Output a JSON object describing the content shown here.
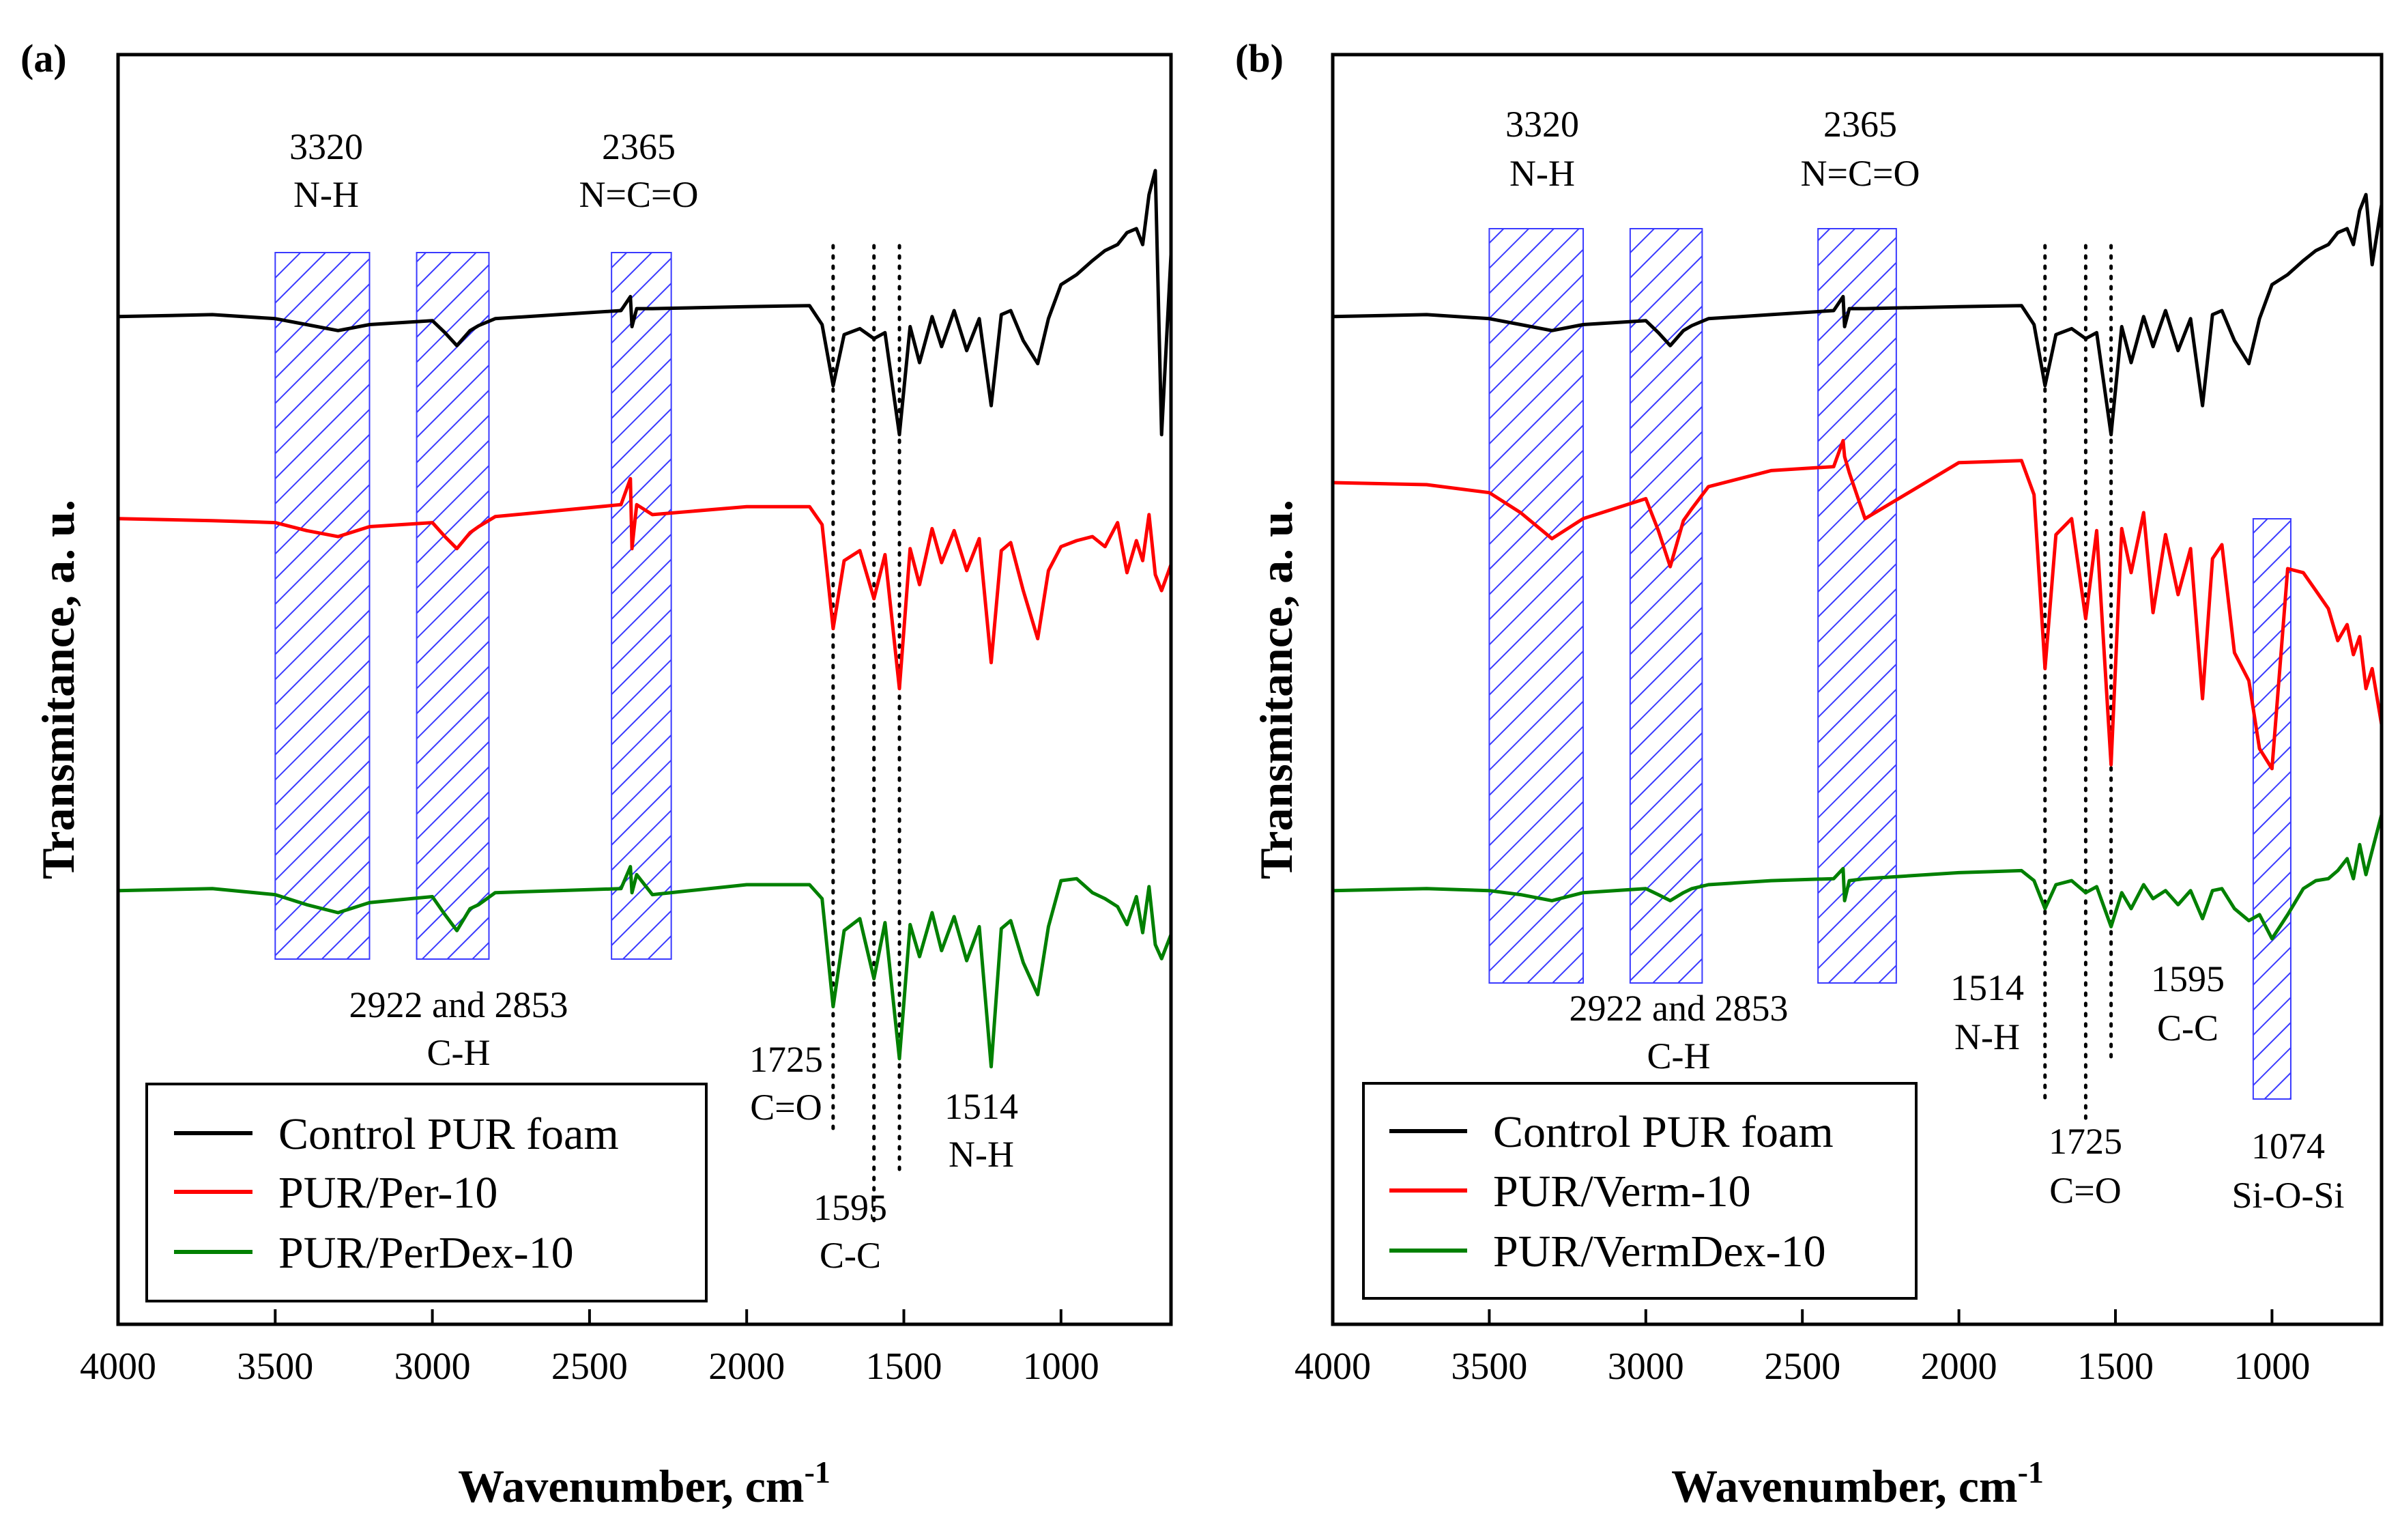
{
  "figure": {
    "ylabel": "Transmitance, a. u.",
    "xlabel": "Wavenumber, cm",
    "xlabel_sup": "-1",
    "colors": {
      "control": "#000000",
      "filled": "#ff0000",
      "treated": "#008000",
      "hatch": "#3a3aff"
    }
  },
  "chart_data": [
    {
      "type": "line",
      "panel": "(a)",
      "title": "",
      "xlabel": "Wavenumber, cm-1",
      "ylabel": "Transmitance, a. u.",
      "xlim": [
        4000,
        650
      ],
      "x_ticks": [
        4000,
        3500,
        3000,
        2500,
        2000,
        1500,
        1000
      ],
      "y_ticks": [],
      "legend_position": "bottom-left",
      "series": [
        {
          "name": "Control PUR foam",
          "color": "#000000",
          "x": [
            4000,
            3700,
            3500,
            3400,
            3300,
            3200,
            3000,
            2960,
            2922,
            2880,
            2853,
            2800,
            2600,
            2400,
            2370,
            2365,
            2350,
            2300,
            2000,
            1800,
            1760,
            1725,
            1690,
            1640,
            1595,
            1560,
            1514,
            1480,
            1450,
            1410,
            1380,
            1340,
            1300,
            1260,
            1222,
            1190,
            1160,
            1120,
            1074,
            1040,
            1000,
            950,
            900,
            860,
            820,
            790,
            760,
            740,
            720,
            700,
            680,
            650
          ],
          "y": [
            73.8,
            74.0,
            73.6,
            73.0,
            72.4,
            73.0,
            73.4,
            72.2,
            70.9,
            72.4,
            72.9,
            73.6,
            74.0,
            74.4,
            75.8,
            72.8,
            74.6,
            74.6,
            74.8,
            74.9,
            73.0,
            66.9,
            72.0,
            72.6,
            71.6,
            72.2,
            62.0,
            72.8,
            69.2,
            73.8,
            70.8,
            74.4,
            70.4,
            73.6,
            64.9,
            74.0,
            74.4,
            71.4,
            69.1,
            73.6,
            77.0,
            78.0,
            79.4,
            80.4,
            81.0,
            82.2,
            82.6,
            81.0,
            86.0,
            88.4,
            62.0,
            80.0
          ]
        },
        {
          "name": "PUR/Per-10",
          "color": "#ff0000",
          "x": [
            4000,
            3700,
            3500,
            3400,
            3300,
            3200,
            3000,
            2960,
            2922,
            2880,
            2853,
            2800,
            2600,
            2400,
            2370,
            2365,
            2350,
            2300,
            2000,
            1800,
            1760,
            1725,
            1690,
            1640,
            1595,
            1560,
            1514,
            1480,
            1450,
            1410,
            1380,
            1340,
            1300,
            1260,
            1222,
            1190,
            1160,
            1120,
            1074,
            1040,
            1000,
            950,
            900,
            860,
            820,
            790,
            760,
            740,
            720,
            700,
            680,
            650
          ],
          "y": [
            53.6,
            53.4,
            53.2,
            52.4,
            51.8,
            52.8,
            53.2,
            51.8,
            50.6,
            52.2,
            52.8,
            53.8,
            54.4,
            55.0,
            57.6,
            50.6,
            55.0,
            54.0,
            54.8,
            54.8,
            53.0,
            42.6,
            49.4,
            50.4,
            45.6,
            50.0,
            36.6,
            50.6,
            47.0,
            52.6,
            49.2,
            52.4,
            48.4,
            51.6,
            39.2,
            50.4,
            51.2,
            46.4,
            41.6,
            48.4,
            50.8,
            51.4,
            51.8,
            50.8,
            53.2,
            48.2,
            51.4,
            49.4,
            54.0,
            48.0,
            46.4,
            49.0
          ]
        },
        {
          "name": "PUR/PerDex-10",
          "color": "#008000",
          "x": [
            4000,
            3700,
            3500,
            3400,
            3300,
            3200,
            3000,
            2960,
            2922,
            2880,
            2853,
            2800,
            2600,
            2400,
            2370,
            2365,
            2350,
            2300,
            2000,
            1800,
            1760,
            1725,
            1690,
            1640,
            1595,
            1560,
            1514,
            1480,
            1450,
            1410,
            1380,
            1340,
            1300,
            1260,
            1222,
            1190,
            1160,
            1120,
            1074,
            1040,
            1000,
            950,
            900,
            860,
            820,
            790,
            760,
            740,
            720,
            700,
            680,
            650
          ],
          "y": [
            16.4,
            16.6,
            16.0,
            15.0,
            14.2,
            15.2,
            15.8,
            14.0,
            12.4,
            14.6,
            15.0,
            16.2,
            16.4,
            16.6,
            18.8,
            16.2,
            18.0,
            16.0,
            17.0,
            17.0,
            15.6,
            4.8,
            12.4,
            13.6,
            7.6,
            13.2,
            -0.4,
            13.0,
            9.8,
            14.2,
            10.4,
            13.8,
            9.4,
            12.8,
            -1.2,
            12.6,
            13.4,
            9.2,
            6.0,
            12.8,
            17.4,
            17.6,
            16.2,
            15.6,
            14.8,
            13.0,
            15.8,
            12.2,
            16.8,
            11.0,
            9.6,
            12.0
          ]
        }
      ],
      "highlight_bands": [
        [
          3500,
          3200
        ],
        [
          3050,
          2820
        ],
        [
          2430,
          2240
        ]
      ],
      "dotted_markers": [
        1725,
        1595,
        1514
      ],
      "annotations": [
        {
          "lines": [
            "3320",
            "N-H"
          ],
          "x": 3320
        },
        {
          "lines": [
            "2365",
            "N=C=O"
          ],
          "x": 2365
        },
        {
          "lines": [
            "2922 and 2853",
            "C-H"
          ],
          "x": 2922
        },
        {
          "lines": [
            "1725",
            "C=O"
          ],
          "x": 1725
        },
        {
          "lines": [
            "1595",
            "C-C"
          ],
          "x": 1595
        },
        {
          "lines": [
            "1514",
            "N-H"
          ],
          "x": 1514
        }
      ]
    },
    {
      "type": "line",
      "panel": "(b)",
      "title": "",
      "xlabel": "Wavenumber, cm-1",
      "ylabel": "Transmitance, a. u.",
      "xlim": [
        4000,
        650
      ],
      "x_ticks": [
        4000,
        3500,
        3000,
        2500,
        2000,
        1500,
        1000
      ],
      "y_ticks": [],
      "legend_position": "bottom-left",
      "series": [
        {
          "name": "Control PUR foam",
          "color": "#000000",
          "x": [
            4000,
            3700,
            3500,
            3400,
            3300,
            3200,
            3000,
            2960,
            2922,
            2880,
            2853,
            2800,
            2600,
            2400,
            2370,
            2365,
            2350,
            2300,
            2000,
            1800,
            1760,
            1725,
            1690,
            1640,
            1595,
            1560,
            1514,
            1480,
            1450,
            1410,
            1380,
            1340,
            1300,
            1260,
            1222,
            1190,
            1160,
            1120,
            1074,
            1040,
            1000,
            950,
            900,
            860,
            820,
            790,
            760,
            740,
            720,
            700,
            680,
            650
          ],
          "y": [
            73.8,
            74.0,
            73.6,
            73.0,
            72.4,
            73.0,
            73.4,
            72.2,
            70.9,
            72.4,
            72.9,
            73.6,
            74.0,
            74.4,
            75.8,
            72.8,
            74.6,
            74.6,
            74.8,
            74.9,
            73.0,
            66.9,
            72.0,
            72.6,
            71.6,
            72.2,
            62.0,
            72.8,
            69.2,
            73.8,
            70.8,
            74.4,
            70.4,
            73.6,
            64.9,
            74.0,
            74.4,
            71.4,
            69.1,
            73.6,
            77.0,
            78.0,
            79.4,
            80.4,
            81.0,
            82.2,
            82.6,
            81.0,
            84.4,
            86.0,
            79.0,
            85.0
          ]
        },
        {
          "name": "PUR/Verm-10",
          "color": "#ff0000",
          "x": [
            4000,
            3700,
            3500,
            3400,
            3300,
            3200,
            3000,
            2960,
            2922,
            2880,
            2853,
            2800,
            2600,
            2400,
            2370,
            2365,
            2350,
            2300,
            2000,
            1800,
            1760,
            1725,
            1690,
            1640,
            1595,
            1560,
            1514,
            1480,
            1450,
            1410,
            1380,
            1340,
            1300,
            1260,
            1222,
            1190,
            1160,
            1120,
            1074,
            1040,
            1000,
            950,
            900,
            860,
            820,
            790,
            760,
            740,
            720,
            700,
            680,
            650
          ],
          "y": [
            57.2,
            57.0,
            56.2,
            54.2,
            51.6,
            53.6,
            55.6,
            52.4,
            48.8,
            53.4,
            54.6,
            56.8,
            58.4,
            58.8,
            61.4,
            59.8,
            58.2,
            53.6,
            59.2,
            59.4,
            56.0,
            38.6,
            52.0,
            53.6,
            43.6,
            52.4,
            29.0,
            52.6,
            48.2,
            54.2,
            44.2,
            52.0,
            46.0,
            50.6,
            35.6,
            49.6,
            51.0,
            40.2,
            37.4,
            30.6,
            28.6,
            48.6,
            48.2,
            46.4,
            44.6,
            41.4,
            43.0,
            40.0,
            41.8,
            36.6,
            38.6,
            33.0
          ]
        },
        {
          "name": "PUR/VermDex-10",
          "color": "#008000",
          "x": [
            4000,
            3700,
            3500,
            3400,
            3300,
            3200,
            3000,
            2960,
            2922,
            2880,
            2853,
            2800,
            2600,
            2400,
            2370,
            2365,
            2350,
            2300,
            2000,
            1800,
            1760,
            1725,
            1690,
            1640,
            1595,
            1560,
            1514,
            1480,
            1450,
            1410,
            1380,
            1340,
            1300,
            1260,
            1222,
            1190,
            1160,
            1120,
            1074,
            1040,
            1000,
            950,
            900,
            860,
            820,
            790,
            760,
            740,
            720,
            700,
            680,
            650
          ],
          "y": [
            16.4,
            16.6,
            16.4,
            16.0,
            15.4,
            16.2,
            16.6,
            16.0,
            15.4,
            16.2,
            16.6,
            17.0,
            17.4,
            17.6,
            18.6,
            15.4,
            17.4,
            17.6,
            18.2,
            18.4,
            17.4,
            14.6,
            17.0,
            17.4,
            16.2,
            16.8,
            12.8,
            16.2,
            14.6,
            17.0,
            15.6,
            16.4,
            15.0,
            16.4,
            13.6,
            16.4,
            16.6,
            14.6,
            13.4,
            14.0,
            11.6,
            14.0,
            16.6,
            17.4,
            17.6,
            18.4,
            19.6,
            17.6,
            21.0,
            18.0,
            20.4,
            24.0
          ]
        }
      ],
      "highlight_bands": [
        [
          3500,
          3200
        ],
        [
          3050,
          2820
        ],
        [
          2450,
          2200
        ],
        [
          1060,
          940
        ]
      ],
      "dotted_markers": [
        1725,
        1595,
        1514
      ],
      "annotations": [
        {
          "lines": [
            "3320",
            "N-H"
          ],
          "x": 3320
        },
        {
          "lines": [
            "2365",
            "N=C=O"
          ],
          "x": 2365
        },
        {
          "lines": [
            "2922 and 2853",
            "C-H"
          ],
          "x": 2922
        },
        {
          "lines": [
            "1514",
            "N-H"
          ],
          "x": 1514
        },
        {
          "lines": [
            "1725",
            "C=O"
          ],
          "x": 1725
        },
        {
          "lines": [
            "1595",
            "C-C"
          ],
          "x": 1595
        },
        {
          "lines": [
            "1074",
            "Si-O-Si"
          ],
          "x": 1074
        }
      ]
    }
  ]
}
